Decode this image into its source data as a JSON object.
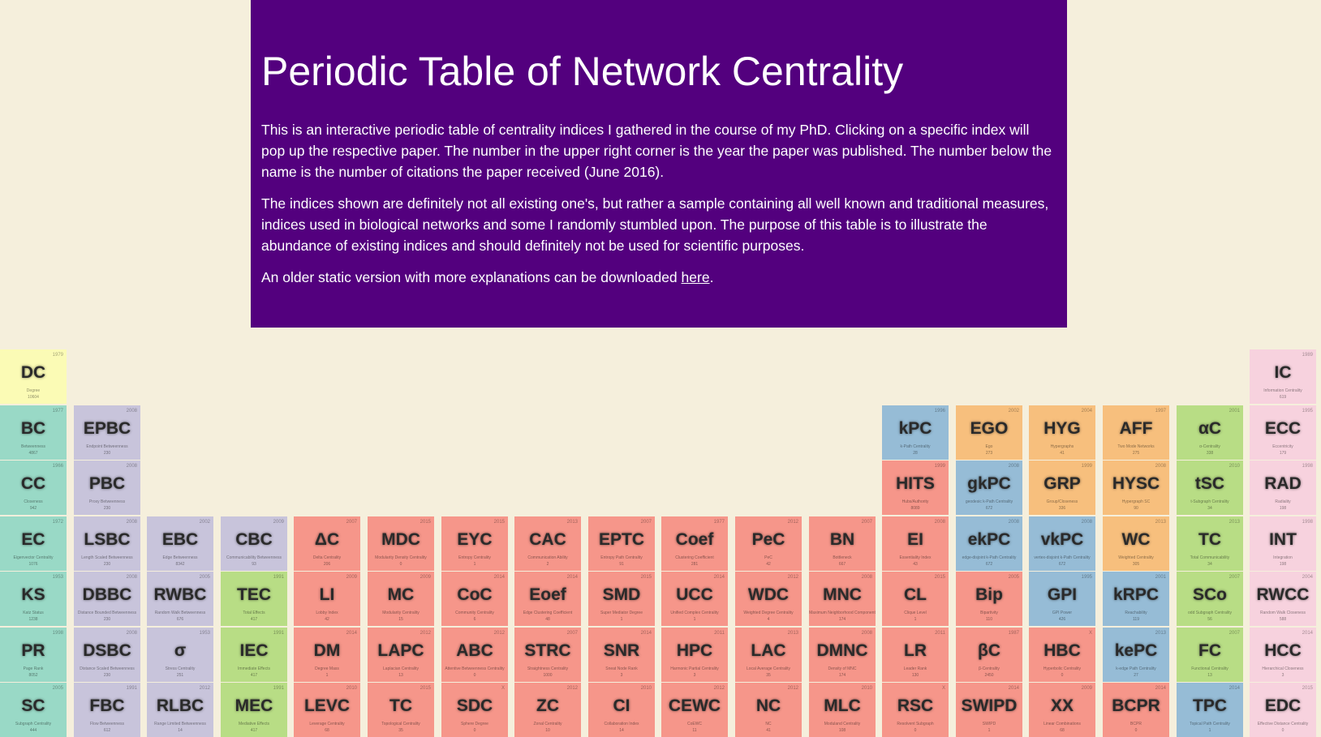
{
  "header": {
    "title": "Periodic Table of Network Centrality",
    "para1": "This is an interactive periodic table of centrality indices I gathered in the course of my PhD. Clicking on a specific index will pop up the respective paper. The number in the upper right corner is the year the paper was published. The number below the name is the number of citations the paper received (June 2016).",
    "para2": "The indices shown are definitely not all existing one's, but rather a sample containing all well known and traditional measures, indices used in biological networks and some I randomly stumbled upon. The purpose of this table is to illustrate the abundance of existing indices and should definitely not be used for scientific purposes.",
    "para3_prefix": "An older static version with more explanations can be downloaded ",
    "para3_link": "here",
    "para3_suffix": "."
  },
  "colors": {
    "header_bg": "#53007e",
    "page_bg": "#f5efdc",
    "yellow": "#fbfbb5",
    "teal": "#99d9c6",
    "lavender": "#c8c4db",
    "green": "#b8dd85",
    "red": "#f6968a",
    "blue": "#96bcd6",
    "orange": "#f7bf7d",
    "pink": "#f7d2de"
  },
  "elements": [
    {
      "sym": "DC",
      "name": "Degree",
      "year": "1979",
      "cit": "10604",
      "col": 0,
      "row": 0,
      "color": "yellow"
    },
    {
      "sym": "IC",
      "name": "Information Centrality",
      "year": "1989",
      "cit": "619",
      "col": 17,
      "row": 0,
      "color": "pink"
    },
    {
      "sym": "BC",
      "name": "Betweenness",
      "year": "1977",
      "cit": "4867",
      "col": 0,
      "row": 1,
      "color": "teal"
    },
    {
      "sym": "EPBC",
      "name": "Endpoint Betweenness",
      "year": "2008",
      "cit": "230",
      "col": 1,
      "row": 1,
      "color": "lavender"
    },
    {
      "sym": "kPC",
      "name": "k-Path Centrality",
      "year": "1996",
      "cit": "28",
      "col": 12,
      "row": 1,
      "color": "blue"
    },
    {
      "sym": "EGO",
      "name": "Ego",
      "year": "2002",
      "cit": "273",
      "col": 13,
      "row": 1,
      "color": "orange"
    },
    {
      "sym": "HYG",
      "name": "Hypergraphs",
      "year": "2004",
      "cit": "41",
      "col": 14,
      "row": 1,
      "color": "orange"
    },
    {
      "sym": "AFF",
      "name": "Two Mode Networks",
      "year": "1997",
      "cit": "275",
      "col": 15,
      "row": 1,
      "color": "orange"
    },
    {
      "sym": "αC",
      "name": "α-Centrality",
      "year": "2001",
      "cit": "338",
      "col": 16,
      "row": 1,
      "color": "green"
    },
    {
      "sym": "ECC",
      "name": "Eccentricity",
      "year": "1995",
      "cit": "179",
      "col": 17,
      "row": 1,
      "color": "pink"
    },
    {
      "sym": "CC",
      "name": "Closeness",
      "year": "1966",
      "cit": "942",
      "col": 0,
      "row": 2,
      "color": "teal"
    },
    {
      "sym": "PBC",
      "name": "Proxy Betweenness",
      "year": "2008",
      "cit": "230",
      "col": 1,
      "row": 2,
      "color": "lavender"
    },
    {
      "sym": "HITS",
      "name": "Hubs/Authority",
      "year": "1999",
      "cit": "8089",
      "col": 12,
      "row": 2,
      "color": "red"
    },
    {
      "sym": "gkPC",
      "name": "geodesic k-Path Centrality",
      "year": "2008",
      "cit": "672",
      "col": 13,
      "row": 2,
      "color": "blue"
    },
    {
      "sym": "GRP",
      "name": "Group/Closeness",
      "year": "1999",
      "cit": "336",
      "col": 14,
      "row": 2,
      "color": "orange"
    },
    {
      "sym": "HYSC",
      "name": "Hypergraph SC",
      "year": "2008",
      "cit": "90",
      "col": 15,
      "row": 2,
      "color": "orange"
    },
    {
      "sym": "tSC",
      "name": "t-Subgraph Centrality",
      "year": "2010",
      "cit": "34",
      "col": 16,
      "row": 2,
      "color": "green"
    },
    {
      "sym": "RAD",
      "name": "Radiality",
      "year": "1998",
      "cit": "198",
      "col": 17,
      "row": 2,
      "color": "pink"
    },
    {
      "sym": "EC",
      "name": "Eigenvector Centrality",
      "year": "1972",
      "cit": "1076",
      "col": 0,
      "row": 3,
      "color": "teal"
    },
    {
      "sym": "LSBC",
      "name": "Length Scaled Betweenness",
      "year": "2008",
      "cit": "230",
      "col": 1,
      "row": 3,
      "color": "lavender"
    },
    {
      "sym": "EBC",
      "name": "Edge Betweenness",
      "year": "2002",
      "cit": "8342",
      "col": 2,
      "row": 3,
      "color": "lavender"
    },
    {
      "sym": "CBC",
      "name": "Communicability Betweenness",
      "year": "2009",
      "cit": "93",
      "col": 3,
      "row": 3,
      "color": "lavender"
    },
    {
      "sym": "ΔC",
      "name": "Delta Centrality",
      "year": "2007",
      "cit": "206",
      "col": 4,
      "row": 3,
      "color": "red"
    },
    {
      "sym": "MDC",
      "name": "Modularity Density Centrality",
      "year": "2015",
      "cit": "0",
      "col": 5,
      "row": 3,
      "color": "red"
    },
    {
      "sym": "EYC",
      "name": "Entropy Centrality",
      "year": "2015",
      "cit": "1",
      "col": 6,
      "row": 3,
      "color": "red"
    },
    {
      "sym": "CAC",
      "name": "Communication Ability",
      "year": "2013",
      "cit": "2",
      "col": 7,
      "row": 3,
      "color": "red"
    },
    {
      "sym": "EPTC",
      "name": "Entropy Path Centrality",
      "year": "2007",
      "cit": "91",
      "col": 8,
      "row": 3,
      "color": "red"
    },
    {
      "sym": "Coef",
      "name": "Clustering Coefficient",
      "year": "1977",
      "cit": "281",
      "col": 9,
      "row": 3,
      "color": "red"
    },
    {
      "sym": "PeC",
      "name": "PeC",
      "year": "2012",
      "cit": "42",
      "col": 10,
      "row": 3,
      "color": "red"
    },
    {
      "sym": "BN",
      "name": "Bottleneck",
      "year": "2007",
      "cit": "667",
      "col": 11,
      "row": 3,
      "color": "red"
    },
    {
      "sym": "EI",
      "name": "Essentiality Index",
      "year": "2008",
      "cit": "43",
      "col": 12,
      "row": 3,
      "color": "red"
    },
    {
      "sym": "ekPC",
      "name": "edge-disjoint k-Path Centrality",
      "year": "2008",
      "cit": "672",
      "col": 13,
      "row": 3,
      "color": "blue"
    },
    {
      "sym": "vkPC",
      "name": "vertex-disjoint k-Path Centrality",
      "year": "2008",
      "cit": "672",
      "col": 14,
      "row": 3,
      "color": "blue"
    },
    {
      "sym": "WC",
      "name": "Weighted Centrality",
      "year": "2013",
      "cit": "305",
      "col": 15,
      "row": 3,
      "color": "orange"
    },
    {
      "sym": "TC",
      "name": "Total Communicability",
      "year": "2013",
      "cit": "34",
      "col": 16,
      "row": 3,
      "color": "green"
    },
    {
      "sym": "INT",
      "name": "Integration",
      "year": "1998",
      "cit": "198",
      "col": 17,
      "row": 3,
      "color": "pink"
    },
    {
      "sym": "KS",
      "name": "Katz Status",
      "year": "1953",
      "cit": "1238",
      "col": 0,
      "row": 4,
      "color": "teal"
    },
    {
      "sym": "DBBC",
      "name": "Distance Bounded Betweenness",
      "year": "2008",
      "cit": "230",
      "col": 1,
      "row": 4,
      "color": "lavender"
    },
    {
      "sym": "RWBC",
      "name": "Random Walk Betweenness",
      "year": "2005",
      "cit": "676",
      "col": 2,
      "row": 4,
      "color": "lavender"
    },
    {
      "sym": "TEC",
      "name": "Total Effects",
      "year": "1991",
      "cit": "417",
      "col": 3,
      "row": 4,
      "color": "green"
    },
    {
      "sym": "LI",
      "name": "Lobby Index",
      "year": "2009",
      "cit": "42",
      "col": 4,
      "row": 4,
      "color": "red"
    },
    {
      "sym": "MC",
      "name": "Modularity Centrality",
      "year": "2009",
      "cit": "15",
      "col": 5,
      "row": 4,
      "color": "red"
    },
    {
      "sym": "CoC",
      "name": "Community Centrality",
      "year": "2014",
      "cit": "6",
      "col": 6,
      "row": 4,
      "color": "red"
    },
    {
      "sym": "Eoef",
      "name": "Edge Clustering Coefficient",
      "year": "2014",
      "cit": "48",
      "col": 7,
      "row": 4,
      "color": "red"
    },
    {
      "sym": "SMD",
      "name": "Super Mediator Degree",
      "year": "2015",
      "cit": "1",
      "col": 8,
      "row": 4,
      "color": "red"
    },
    {
      "sym": "UCC",
      "name": "Unified Complex Centrality",
      "year": "2014",
      "cit": "1",
      "col": 9,
      "row": 4,
      "color": "red"
    },
    {
      "sym": "WDC",
      "name": "Weighted Degree Centrality",
      "year": "2012",
      "cit": "4",
      "col": 10,
      "row": 4,
      "color": "red"
    },
    {
      "sym": "MNC",
      "name": "Maximum Neighborhood Component",
      "year": "2008",
      "cit": "174",
      "col": 11,
      "row": 4,
      "color": "red"
    },
    {
      "sym": "CL",
      "name": "Clique Level",
      "year": "2015",
      "cit": "1",
      "col": 12,
      "row": 4,
      "color": "red"
    },
    {
      "sym": "Bip",
      "name": "Bipartivity",
      "year": "2005",
      "cit": "110",
      "col": 13,
      "row": 4,
      "color": "red"
    },
    {
      "sym": "GPI",
      "name": "GPI Power",
      "year": "1995",
      "cit": "426",
      "col": 14,
      "row": 4,
      "color": "blue"
    },
    {
      "sym": "kRPC",
      "name": "Reachability",
      "year": "2001",
      "cit": "119",
      "col": 15,
      "row": 4,
      "color": "blue"
    },
    {
      "sym": "SCo",
      "name": "odd Subgraph Centrality",
      "year": "2007",
      "cit": "56",
      "col": 16,
      "row": 4,
      "color": "green"
    },
    {
      "sym": "RWCC",
      "name": "Random Walk Closeness",
      "year": "2004",
      "cit": "588",
      "col": 17,
      "row": 4,
      "color": "pink"
    },
    {
      "sym": "PR",
      "name": "Page Rank",
      "year": "1998",
      "cit": "8052",
      "col": 0,
      "row": 5,
      "color": "teal"
    },
    {
      "sym": "DSBC",
      "name": "Distance Scaled Betweenness",
      "year": "2008",
      "cit": "230",
      "col": 1,
      "row": 5,
      "color": "lavender"
    },
    {
      "sym": "σ",
      "name": "Stress Centrality",
      "year": "1953",
      "cit": "251",
      "col": 2,
      "row": 5,
      "color": "lavender"
    },
    {
      "sym": "IEC",
      "name": "Immediate Effects",
      "year": "1991",
      "cit": "417",
      "col": 3,
      "row": 5,
      "color": "green"
    },
    {
      "sym": "DM",
      "name": "Degree Mass",
      "year": "2014",
      "cit": "1",
      "col": 4,
      "row": 5,
      "color": "red"
    },
    {
      "sym": "LAPC",
      "name": "Laplacian Centrality",
      "year": "2012",
      "cit": "13",
      "col": 5,
      "row": 5,
      "color": "red"
    },
    {
      "sym": "ABC",
      "name": "Attentive Betweenness Centrality",
      "year": "2012",
      "cit": "0",
      "col": 6,
      "row": 5,
      "color": "red"
    },
    {
      "sym": "STRC",
      "name": "Straightness Centrality",
      "year": "2007",
      "cit": "1000",
      "col": 7,
      "row": 5,
      "color": "red"
    },
    {
      "sym": "SNR",
      "name": "Sneat Node Rank",
      "year": "2014",
      "cit": "3",
      "col": 8,
      "row": 5,
      "color": "red"
    },
    {
      "sym": "HPC",
      "name": "Harmonic Partial Centrality",
      "year": "2011",
      "cit": "3",
      "col": 9,
      "row": 5,
      "color": "red"
    },
    {
      "sym": "LAC",
      "name": "Local Average Centrality",
      "year": "2013",
      "cit": "35",
      "col": 10,
      "row": 5,
      "color": "red"
    },
    {
      "sym": "DMNC",
      "name": "Density of MNC",
      "year": "2008",
      "cit": "174",
      "col": 11,
      "row": 5,
      "color": "red"
    },
    {
      "sym": "LR",
      "name": "Leader Rank",
      "year": "2011",
      "cit": "130",
      "col": 12,
      "row": 5,
      "color": "red"
    },
    {
      "sym": "βC",
      "name": "β-Centrality",
      "year": "1987",
      "cit": "2450",
      "col": 13,
      "row": 5,
      "color": "red"
    },
    {
      "sym": "HBC",
      "name": "Hyperbolic Centrality",
      "year": "X",
      "cit": "0",
      "col": 14,
      "row": 5,
      "color": "red"
    },
    {
      "sym": "kePC",
      "name": "k-edge Path Centrality",
      "year": "2013",
      "cit": "27",
      "col": 15,
      "row": 5,
      "color": "blue"
    },
    {
      "sym": "FC",
      "name": "Functional Centrality",
      "year": "2007",
      "cit": "13",
      "col": 16,
      "row": 5,
      "color": "green"
    },
    {
      "sym": "HCC",
      "name": "Hierarchical Closeness",
      "year": "2014",
      "cit": "3",
      "col": 17,
      "row": 5,
      "color": "pink"
    },
    {
      "sym": "SC",
      "name": "Subgraph Centrality",
      "year": "2005",
      "cit": "444",
      "col": 0,
      "row": 6,
      "color": "teal"
    },
    {
      "sym": "FBC",
      "name": "Flow Betweenness",
      "year": "1991",
      "cit": "612",
      "col": 1,
      "row": 6,
      "color": "lavender"
    },
    {
      "sym": "RLBC",
      "name": "Range Limited Betweenness",
      "year": "2012",
      "cit": "14",
      "col": 2,
      "row": 6,
      "color": "lavender"
    },
    {
      "sym": "MEC",
      "name": "Mediative Effects",
      "year": "1991",
      "cit": "417",
      "col": 3,
      "row": 6,
      "color": "green"
    },
    {
      "sym": "LEVC",
      "name": "Leverage Centrality",
      "year": "2010",
      "cit": "68",
      "col": 4,
      "row": 6,
      "color": "red"
    },
    {
      "sym": "TC",
      "name": "Topological Centrality",
      "year": "2015",
      "cit": "35",
      "col": 5,
      "row": 6,
      "color": "red"
    },
    {
      "sym": "SDC",
      "name": "Sphere Degree",
      "year": "X",
      "cit": "0",
      "col": 6,
      "row": 6,
      "color": "red"
    },
    {
      "sym": "ZC",
      "name": "Zonal Centrality",
      "year": "2012",
      "cit": "10",
      "col": 7,
      "row": 6,
      "color": "red"
    },
    {
      "sym": "CI",
      "name": "Collaboration Index",
      "year": "2010",
      "cit": "14",
      "col": 8,
      "row": 6,
      "color": "red"
    },
    {
      "sym": "CEWC",
      "name": "CoEWC",
      "year": "2012",
      "cit": "11",
      "col": 9,
      "row": 6,
      "color": "red"
    },
    {
      "sym": "NC",
      "name": "NC",
      "year": "2012",
      "cit": "41",
      "col": 10,
      "row": 6,
      "color": "red"
    },
    {
      "sym": "MLC",
      "name": "Moduland Centrality",
      "year": "2010",
      "cit": "108",
      "col": 11,
      "row": 6,
      "color": "red"
    },
    {
      "sym": "RSC",
      "name": "Resolvent Subgraph",
      "year": "X",
      "cit": "0",
      "col": 12,
      "row": 6,
      "color": "red"
    },
    {
      "sym": "SWIPD",
      "name": "SWIPD",
      "year": "2014",
      "cit": "1",
      "col": 13,
      "row": 6,
      "color": "red"
    },
    {
      "sym": "XX",
      "name": "Linear Combinations",
      "year": "2009",
      "cit": "68",
      "col": 14,
      "row": 6,
      "color": "red"
    },
    {
      "sym": "BCPR",
      "name": "BCPR",
      "year": "2014",
      "cit": "0",
      "col": 15,
      "row": 6,
      "color": "red"
    },
    {
      "sym": "TPC",
      "name": "Topical Path Centrality",
      "year": "2014",
      "cit": "1",
      "col": 16,
      "row": 6,
      "color": "blue"
    },
    {
      "sym": "EDC",
      "name": "Effective Distance Centrality",
      "year": "2015",
      "cit": "0",
      "col": 17,
      "row": 6,
      "color": "pink"
    }
  ]
}
